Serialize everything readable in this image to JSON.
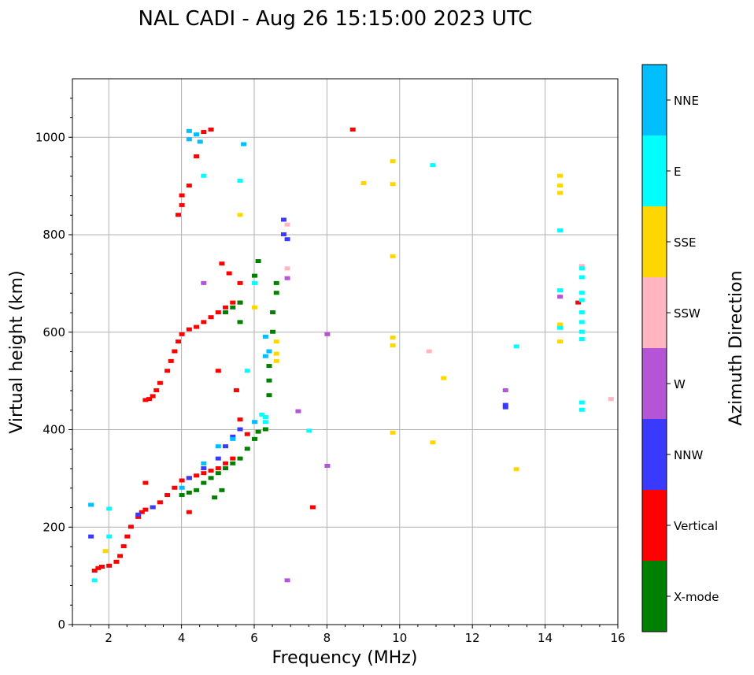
{
  "chart_data": {
    "type": "scatter",
    "title": "NAL CADI - Aug 26 15:15:00 2023 UTC",
    "xlabel": "Frequency (MHz)",
    "ylabel": "Virtual height (km)",
    "xlim": [
      1,
      16
    ],
    "ylim": [
      0,
      1120
    ],
    "xticks": [
      2,
      4,
      6,
      8,
      10,
      12,
      14,
      16
    ],
    "yticks": [
      0,
      200,
      400,
      600,
      800,
      1000
    ],
    "grid": true,
    "colorbar": {
      "label": "Azimuth Direction",
      "categories": [
        {
          "name": "X-mode",
          "color": "#008000"
        },
        {
          "name": "Vertical",
          "color": "#ff0000"
        },
        {
          "name": "NNW",
          "color": "#3a3aff"
        },
        {
          "name": "W",
          "color": "#b455d5"
        },
        {
          "name": "SSW",
          "color": "#ffb6c1"
        },
        {
          "name": "SSE",
          "color": "#ffd700"
        },
        {
          "name": "E",
          "color": "#00ffff"
        },
        {
          "name": "NNE",
          "color": "#00bfff"
        }
      ]
    },
    "series": [
      {
        "name": "Vertical",
        "points": [
          [
            1.6,
            110
          ],
          [
            1.7,
            115
          ],
          [
            1.8,
            118
          ],
          [
            2.0,
            120
          ],
          [
            2.2,
            128
          ],
          [
            2.3,
            140
          ],
          [
            2.4,
            160
          ],
          [
            2.5,
            180
          ],
          [
            2.6,
            200
          ],
          [
            2.8,
            220
          ],
          [
            2.9,
            230
          ],
          [
            3.0,
            235
          ],
          [
            3.2,
            240
          ],
          [
            3.4,
            250
          ],
          [
            3.6,
            265
          ],
          [
            3.8,
            280
          ],
          [
            4.0,
            295
          ],
          [
            4.2,
            300
          ],
          [
            4.4,
            305
          ],
          [
            4.6,
            310
          ],
          [
            4.8,
            315
          ],
          [
            5.0,
            320
          ],
          [
            5.2,
            330
          ],
          [
            5.4,
            340
          ],
          [
            3.0,
            460
          ],
          [
            3.1,
            462
          ],
          [
            3.2,
            468
          ],
          [
            3.3,
            480
          ],
          [
            3.4,
            495
          ],
          [
            3.6,
            520
          ],
          [
            3.7,
            540
          ],
          [
            3.8,
            560
          ],
          [
            3.9,
            580
          ],
          [
            4.0,
            595
          ],
          [
            4.2,
            605
          ],
          [
            4.4,
            610
          ],
          [
            4.6,
            620
          ],
          [
            4.8,
            630
          ],
          [
            5.0,
            640
          ],
          [
            5.2,
            650
          ],
          [
            5.4,
            660
          ],
          [
            5.6,
            660
          ],
          [
            3.9,
            840
          ],
          [
            4.0,
            860
          ],
          [
            4.0,
            880
          ],
          [
            4.2,
            900
          ],
          [
            4.4,
            960
          ],
          [
            4.6,
            1010
          ],
          [
            4.8,
            1015
          ],
          [
            8.7,
            1015
          ],
          [
            5.1,
            740
          ],
          [
            5.3,
            720
          ],
          [
            5.6,
            700
          ],
          [
            5.0,
            520
          ],
          [
            5.5,
            480
          ],
          [
            5.6,
            420
          ],
          [
            5.8,
            390
          ],
          [
            7.6,
            240
          ],
          [
            14.9,
            660
          ],
          [
            3.0,
            290
          ],
          [
            4.2,
            230
          ]
        ]
      },
      {
        "name": "X-mode",
        "points": [
          [
            4.0,
            265
          ],
          [
            4.2,
            270
          ],
          [
            4.4,
            275
          ],
          [
            4.6,
            290
          ],
          [
            4.8,
            300
          ],
          [
            5.0,
            310
          ],
          [
            5.2,
            320
          ],
          [
            5.4,
            330
          ],
          [
            5.6,
            340
          ],
          [
            5.8,
            360
          ],
          [
            6.0,
            380
          ],
          [
            6.1,
            395
          ],
          [
            6.3,
            400
          ],
          [
            6.4,
            470
          ],
          [
            6.4,
            500
          ],
          [
            6.4,
            530
          ],
          [
            6.4,
            560
          ],
          [
            6.5,
            600
          ],
          [
            6.5,
            640
          ],
          [
            6.6,
            680
          ],
          [
            6.6,
            700
          ],
          [
            6.0,
            715
          ],
          [
            6.1,
            745
          ],
          [
            5.2,
            640
          ],
          [
            5.4,
            650
          ],
          [
            5.6,
            660
          ],
          [
            5.6,
            620
          ],
          [
            5.1,
            275
          ],
          [
            4.9,
            260
          ]
        ]
      },
      {
        "name": "NNW",
        "points": [
          [
            1.5,
            180
          ],
          [
            3.2,
            240
          ],
          [
            4.2,
            300
          ],
          [
            4.6,
            320
          ],
          [
            5.0,
            340
          ],
          [
            5.2,
            365
          ],
          [
            5.4,
            385
          ],
          [
            5.6,
            400
          ],
          [
            6.8,
            800
          ],
          [
            6.8,
            830
          ],
          [
            6.9,
            790
          ],
          [
            12.9,
            445
          ],
          [
            12.9,
            450
          ],
          [
            2.8,
            225
          ]
        ]
      },
      {
        "name": "W",
        "points": [
          [
            6.9,
            710
          ],
          [
            8.0,
            595
          ],
          [
            8.0,
            325
          ],
          [
            6.9,
            90
          ],
          [
            12.9,
            480
          ],
          [
            14.4,
            672
          ],
          [
            7.2,
            437
          ],
          [
            4.6,
            700
          ]
        ]
      },
      {
        "name": "SSW",
        "points": [
          [
            10.8,
            560
          ],
          [
            15.0,
            735
          ],
          [
            15.8,
            462
          ],
          [
            6.9,
            730
          ],
          [
            6.9,
            820
          ]
        ]
      },
      {
        "name": "SSE",
        "points": [
          [
            6.0,
            650
          ],
          [
            6.6,
            580
          ],
          [
            6.6,
            555
          ],
          [
            6.6,
            540
          ],
          [
            9.0,
            905
          ],
          [
            9.8,
            950
          ],
          [
            9.8,
            903
          ],
          [
            9.8,
            755
          ],
          [
            9.8,
            588
          ],
          [
            9.8,
            572
          ],
          [
            9.8,
            393
          ],
          [
            10.9,
            373
          ],
          [
            11.2,
            505
          ],
          [
            13.2,
            318
          ],
          [
            14.4,
            920
          ],
          [
            14.4,
            900
          ],
          [
            14.4,
            885
          ],
          [
            14.4,
            615
          ],
          [
            14.4,
            580
          ],
          [
            5.6,
            840
          ],
          [
            1.9,
            150
          ]
        ]
      },
      {
        "name": "E",
        "points": [
          [
            1.6,
            90
          ],
          [
            2.0,
            180
          ],
          [
            2.0,
            237
          ],
          [
            7.5,
            397
          ],
          [
            10.9,
            942
          ],
          [
            13.2,
            570
          ],
          [
            14.4,
            808
          ],
          [
            14.4,
            685
          ],
          [
            14.4,
            608
          ],
          [
            15.0,
            730
          ],
          [
            15.0,
            712
          ],
          [
            15.0,
            680
          ],
          [
            15.0,
            665
          ],
          [
            15.0,
            640
          ],
          [
            15.0,
            620
          ],
          [
            15.0,
            600
          ],
          [
            15.0,
            585
          ],
          [
            15.0,
            455
          ],
          [
            15.0,
            440
          ],
          [
            6.0,
            700
          ],
          [
            6.2,
            430
          ],
          [
            6.3,
            425
          ],
          [
            6.3,
            415
          ],
          [
            4.6,
            920
          ],
          [
            5.6,
            910
          ],
          [
            5.8,
            520
          ]
        ]
      },
      {
        "name": "NNE",
        "points": [
          [
            1.5,
            245
          ],
          [
            4.2,
            1012
          ],
          [
            4.4,
            1005
          ],
          [
            4.5,
            990
          ],
          [
            4.2,
            995
          ],
          [
            5.7,
            985
          ],
          [
            6.3,
            590
          ],
          [
            6.4,
            560
          ],
          [
            5.0,
            365
          ],
          [
            5.4,
            380
          ],
          [
            6.0,
            415
          ],
          [
            4.6,
            330
          ],
          [
            6.3,
            550
          ],
          [
            4.0,
            280
          ]
        ]
      }
    ]
  }
}
